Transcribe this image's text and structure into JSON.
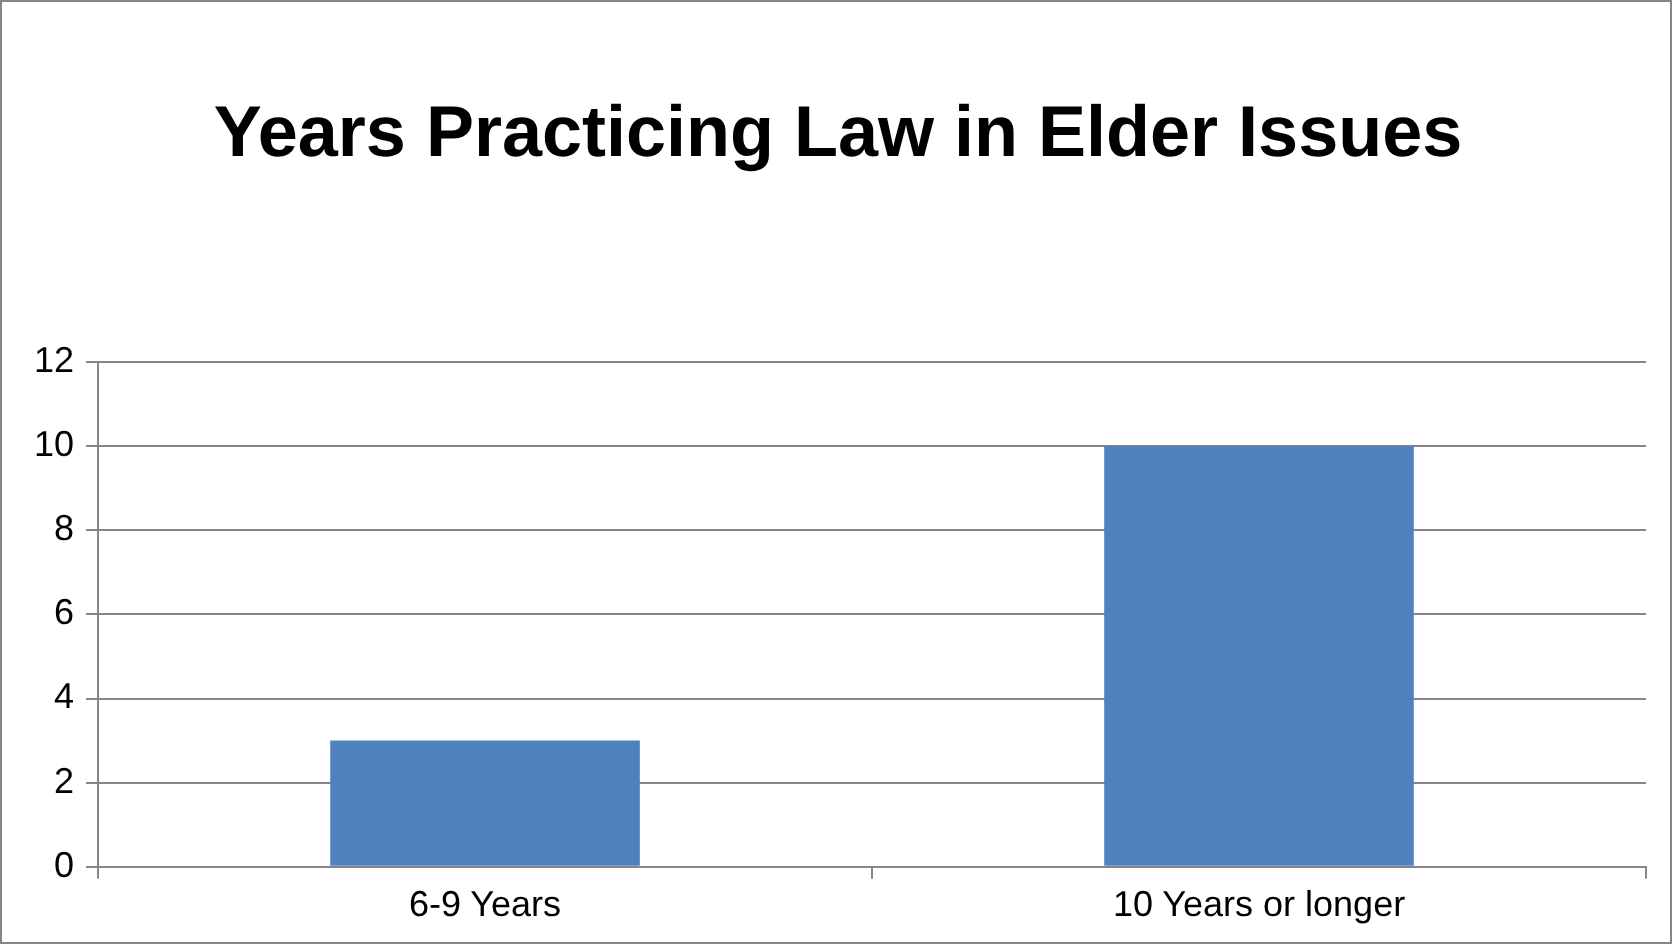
{
  "chart_data": {
    "type": "bar",
    "title": "Years Practicing Law in Elder Issues",
    "categories": [
      "6-9 Years",
      "10 Years or longer"
    ],
    "values": [
      3,
      10
    ],
    "color": "#4f81bd",
    "ylim": [
      0,
      12
    ],
    "yticks": [
      0,
      2,
      4,
      6,
      8,
      10,
      12
    ],
    "grid": "y",
    "legend": false
  }
}
